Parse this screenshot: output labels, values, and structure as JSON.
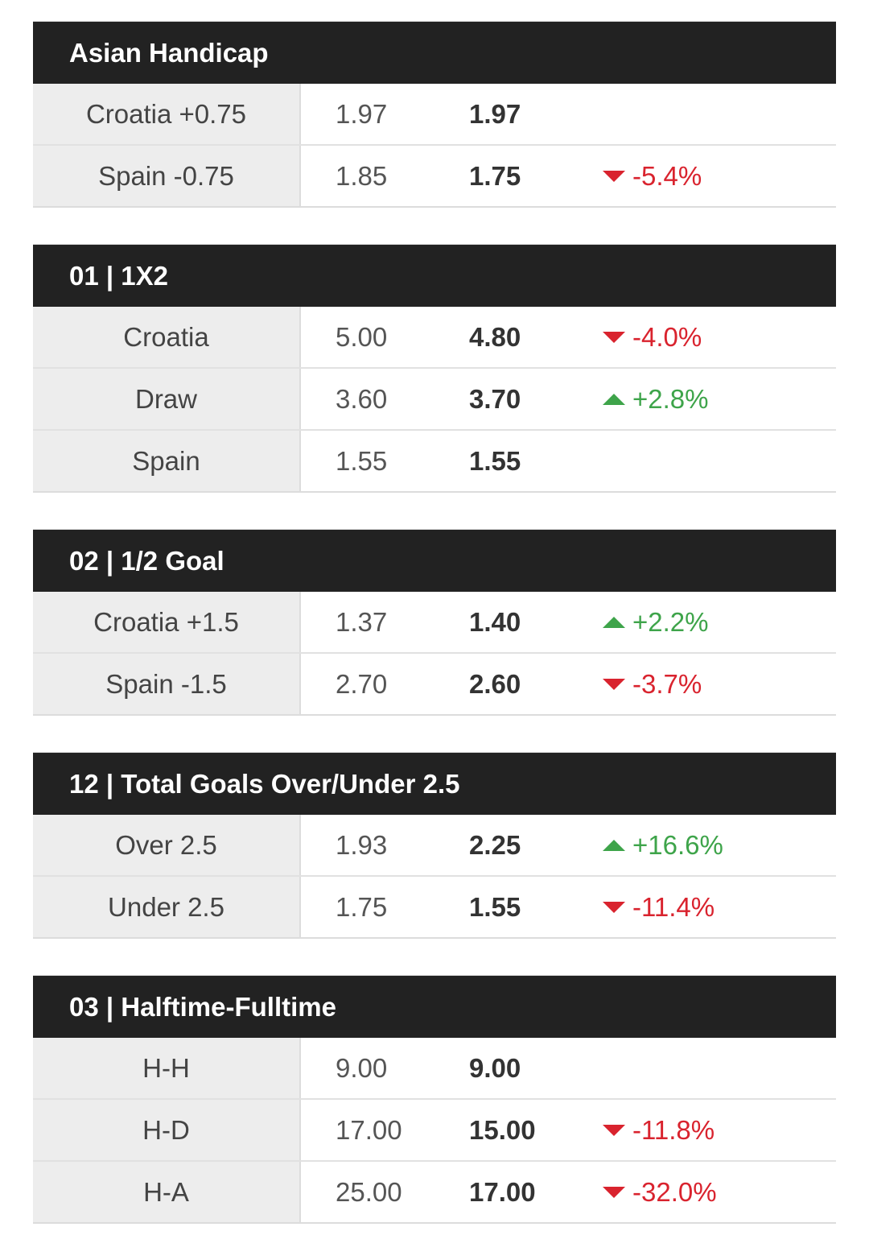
{
  "colors": {
    "header_bg": "#222222",
    "down": "#d9232e",
    "up": "#3ea44a",
    "selection_bg": "#ededed"
  },
  "markets": [
    {
      "title": "Asian Handicap",
      "rows": [
        {
          "selection": "Croatia +0.75",
          "open": "1.97",
          "current": "1.97",
          "change": "",
          "direction": "none"
        },
        {
          "selection": "Spain -0.75",
          "open": "1.85",
          "current": "1.75",
          "change": "-5.4%",
          "direction": "down"
        }
      ]
    },
    {
      "title": "01 | 1X2",
      "rows": [
        {
          "selection": "Croatia",
          "open": "5.00",
          "current": "4.80",
          "change": "-4.0%",
          "direction": "down"
        },
        {
          "selection": "Draw",
          "open": "3.60",
          "current": "3.70",
          "change": "+2.8%",
          "direction": "up"
        },
        {
          "selection": "Spain",
          "open": "1.55",
          "current": "1.55",
          "change": "",
          "direction": "none"
        }
      ]
    },
    {
      "title": "02 | 1/2 Goal",
      "rows": [
        {
          "selection": "Croatia +1.5",
          "open": "1.37",
          "current": "1.40",
          "change": "+2.2%",
          "direction": "up"
        },
        {
          "selection": "Spain -1.5",
          "open": "2.70",
          "current": "2.60",
          "change": "-3.7%",
          "direction": "down"
        }
      ]
    },
    {
      "title": "12 | Total Goals Over/Under 2.5",
      "rows": [
        {
          "selection": "Over 2.5",
          "open": "1.93",
          "current": "2.25",
          "change": "+16.6%",
          "direction": "up"
        },
        {
          "selection": "Under 2.5",
          "open": "1.75",
          "current": "1.55",
          "change": "-11.4%",
          "direction": "down"
        }
      ]
    },
    {
      "title": "03 | Halftime-Fulltime",
      "rows": [
        {
          "selection": "H-H",
          "open": "9.00",
          "current": "9.00",
          "change": "",
          "direction": "none"
        },
        {
          "selection": "H-D",
          "open": "17.00",
          "current": "15.00",
          "change": "-11.8%",
          "direction": "down"
        },
        {
          "selection": "H-A",
          "open": "25.00",
          "current": "17.00",
          "change": "-32.0%",
          "direction": "down"
        }
      ]
    }
  ]
}
